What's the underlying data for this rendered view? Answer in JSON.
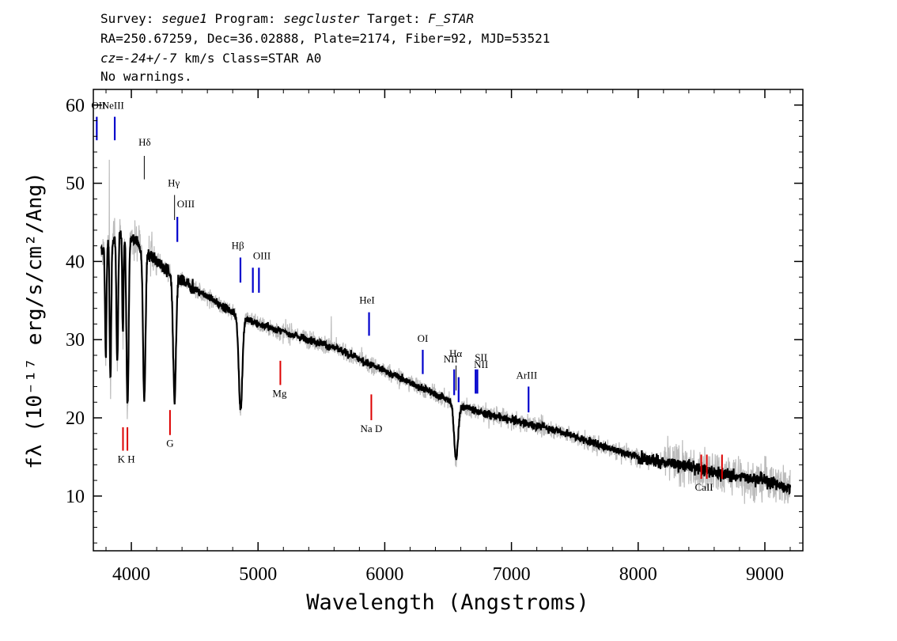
{
  "header": {
    "line1": {
      "survey_prefix": "Survey: ",
      "survey": "segue1",
      "program_prefix": " Program: ",
      "program": "segcluster",
      "target_prefix": " Target: ",
      "target": "F_STAR"
    },
    "line2": "RA=250.67259, Dec=36.02888, Plate=2174, Fiber=92, MJD=53521",
    "line3": {
      "cz_label": "cz",
      "cz_value": "=-24+/-7",
      "rest": " km/s Class=STAR A0"
    },
    "line4": "No warnings."
  },
  "chart_data": {
    "type": "line",
    "xlabel": "Wavelength (Angstroms)",
    "ylabel": "fλ (10⁻¹⁷ erg/s/cm²/Ang)",
    "xlim": [
      3700,
      9300
    ],
    "ylim": [
      3,
      62
    ],
    "xticks": [
      4000,
      5000,
      6000,
      7000,
      8000,
      9000
    ],
    "xtick_labels": [
      "4000",
      "5000",
      "6000",
      "7000",
      "8000",
      "9000"
    ],
    "yticks": [
      10,
      20,
      30,
      40,
      50,
      60
    ],
    "ytick_labels": [
      "10",
      "20",
      "30",
      "40",
      "50",
      "60"
    ],
    "grid": false,
    "colors": {
      "flux": "#000000",
      "error": "#bbbbbb",
      "emission": "#0000cc",
      "absorption": "#dd0000"
    },
    "continuum": [
      [
        3750,
        41
      ],
      [
        3800,
        42
      ],
      [
        3850,
        43
      ],
      [
        3900,
        43.5
      ],
      [
        3950,
        43.5
      ],
      [
        4000,
        43
      ],
      [
        4050,
        42.5
      ],
      [
        4100,
        41.5
      ],
      [
        4150,
        41
      ],
      [
        4200,
        40
      ],
      [
        4300,
        38.5
      ],
      [
        4400,
        37.5
      ],
      [
        4500,
        36.5
      ],
      [
        4600,
        35.5
      ],
      [
        4700,
        34.5
      ],
      [
        4800,
        33.5
      ],
      [
        5000,
        32
      ],
      [
        5200,
        31
      ],
      [
        5400,
        30
      ],
      [
        5600,
        29
      ],
      [
        5800,
        27.5
      ],
      [
        6000,
        26
      ],
      [
        6200,
        24.5
      ],
      [
        6400,
        23
      ],
      [
        6600,
        21.5
      ],
      [
        6800,
        20.5
      ],
      [
        7000,
        19.7
      ],
      [
        7200,
        19
      ],
      [
        7400,
        18.2
      ],
      [
        7600,
        17
      ],
      [
        7800,
        16
      ],
      [
        8000,
        15
      ],
      [
        8200,
        14.3
      ],
      [
        8400,
        13.8
      ],
      [
        8600,
        13
      ],
      [
        8800,
        12.5
      ],
      [
        9000,
        12
      ],
      [
        9200,
        11
      ]
    ],
    "absorption_features": [
      {
        "center": 3798,
        "depth": 14,
        "width": 8
      },
      {
        "center": 3835,
        "depth": 18,
        "width": 9
      },
      {
        "center": 3889,
        "depth": 16,
        "width": 10
      },
      {
        "center": 3933,
        "depth": 13,
        "width": 7
      },
      {
        "center": 3970,
        "depth": 22,
        "width": 12
      },
      {
        "center": 4102,
        "depth": 19,
        "width": 14
      },
      {
        "center": 4341,
        "depth": 16,
        "width": 16
      },
      {
        "center": 4862,
        "depth": 12,
        "width": 20
      },
      {
        "center": 6563,
        "depth": 7,
        "width": 22
      }
    ],
    "spikes": [
      {
        "x": 3825,
        "y": 53
      },
      {
        "x": 5577,
        "y": 33
      },
      {
        "x": 8840,
        "y": 9
      }
    ],
    "emission_lines": [
      {
        "label": "OII",
        "x": 3727,
        "y_top": 58.5,
        "y_bottom": 55.5
      },
      {
        "label": "NeIII",
        "x": 3869,
        "y_top": 58.5,
        "y_bottom": 55.5
      },
      {
        "label": "Hδ",
        "x": 4102,
        "y_top": 53.5,
        "y_bottom": 50.5,
        "color": "#000000"
      },
      {
        "label": "Hγ",
        "x": 4341,
        "y_top": 48.5,
        "y_bottom": 45.3,
        "color": "#000000"
      },
      {
        "label": "OIII",
        "x": 4363,
        "y_top": 45.7,
        "y_bottom": 42.5
      },
      {
        "label": "Hβ",
        "x": 4861,
        "y_top": 40.5,
        "y_bottom": 37.3
      },
      {
        "label": "OIII",
        "x": 4959,
        "y_top": 39.2,
        "y_bottom": 36
      },
      {
        "label": "OIII",
        "x": 5007,
        "y_top": 39.2,
        "y_bottom": 36
      },
      {
        "label": "HeI",
        "x": 5876,
        "y_top": 33.5,
        "y_bottom": 30.5
      },
      {
        "label": "OI",
        "x": 6300,
        "y_top": 28.7,
        "y_bottom": 25.6
      },
      {
        "label": "NII",
        "x": 6548,
        "y_top": 26.2,
        "y_bottom": 22.9
      },
      {
        "label": "Hα",
        "x": 6563,
        "y_top": 26.7,
        "y_bottom": 23.5,
        "color": "#000000"
      },
      {
        "label": "NII",
        "x": 6583,
        "y_top": 25.2,
        "y_bottom": 22
      },
      {
        "label": "SII",
        "x": 6717,
        "y_top": 26.2,
        "y_bottom": 23.1
      },
      {
        "label": "SII",
        "x": 6731,
        "y_top": 26.2,
        "y_bottom": 23.1
      },
      {
        "label": "ArIII",
        "x": 7135,
        "y_top": 24,
        "y_bottom": 20.7
      }
    ],
    "absorption_lines": [
      {
        "label": "K",
        "x": 3934,
        "y_top": 18.8,
        "y_bottom": 15.8
      },
      {
        "label": "H",
        "x": 3969,
        "y_top": 18.8,
        "y_bottom": 15.8
      },
      {
        "label": "G",
        "x": 4305,
        "y_top": 21,
        "y_bottom": 17.8
      },
      {
        "label": "Mg",
        "x": 5176,
        "y_top": 27.3,
        "y_bottom": 24.2
      },
      {
        "label": "Na D",
        "x": 5894,
        "y_top": 23,
        "y_bottom": 19.7
      },
      {
        "label": "CaII",
        "x": 8498,
        "y_top": 15.3,
        "y_bottom": 12.2
      },
      {
        "label": "CaII",
        "x": 8542,
        "y_top": 15.3,
        "y_bottom": 12.2
      },
      {
        "label": "CaII",
        "x": 8662,
        "y_top": 15.3,
        "y_bottom": 12.2
      }
    ],
    "line_label_positions": [
      {
        "text": "OII",
        "x": 3740,
        "y": 59.5
      },
      {
        "text": "NeIII",
        "x": 3855,
        "y": 59.5
      },
      {
        "text": "Hδ",
        "x": 4105,
        "y": 54.8
      },
      {
        "text": "Hγ",
        "x": 4335,
        "y": 49.6
      },
      {
        "text": "OIII",
        "x": 4430,
        "y": 46.9
      },
      {
        "text": "Hβ",
        "x": 4840,
        "y": 41.6
      },
      {
        "text": "OIII",
        "x": 5030,
        "y": 40.3
      },
      {
        "text": "HeI",
        "x": 5860,
        "y": 34.6
      },
      {
        "text": "OI",
        "x": 6300,
        "y": 29.7
      },
      {
        "text": "NII",
        "x": 6520,
        "y": 27.1
      },
      {
        "text": "Hα",
        "x": 6560,
        "y": 27.8
      },
      {
        "text": "NII",
        "x": 6760,
        "y": 26.4
      },
      {
        "text": "SII",
        "x": 6760,
        "y": 27.3
      },
      {
        "text": "ArIII",
        "x": 7120,
        "y": 25
      },
      {
        "text": "K H",
        "x": 3960,
        "y": 14.3
      },
      {
        "text": "G",
        "x": 4305,
        "y": 16.3
      },
      {
        "text": "Mg",
        "x": 5170,
        "y": 22.7
      },
      {
        "text": "Na D",
        "x": 5894,
        "y": 18.2
      },
      {
        "text": "CaII",
        "x": 8520,
        "y": 10.7
      }
    ]
  }
}
